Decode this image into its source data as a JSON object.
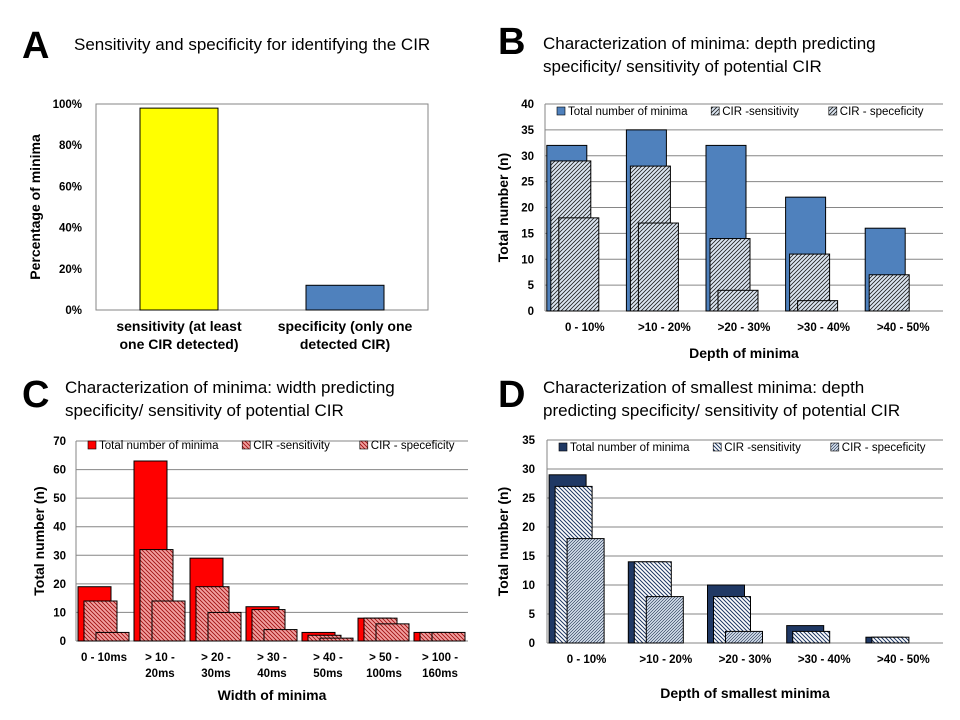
{
  "panels": {
    "A": {
      "letter": "A",
      "title": [
        "Sensitivity and specificity for identifying the CIR"
      ]
    },
    "B": {
      "letter": "B",
      "title": [
        "Characterization of minima: depth predicting",
        "specificity/ sensitivity of potential CIR"
      ]
    },
    "C": {
      "letter": "C",
      "title": [
        "Characterization of minima: width predicting",
        "specificity/ sensitivity of potential CIR"
      ]
    },
    "D": {
      "letter": "D",
      "title": [
        "Characterization of smallest minima: depth",
        "predicting specificity/ sensitivity of potential CIR"
      ]
    }
  },
  "colors": {
    "yellow": "#ffff00",
    "blue": "#4f81bd",
    "lightblue": "#dce6f2",
    "red": "#ff0000",
    "pinkred": "#f2a0a0",
    "navy": "#1f3864",
    "grid": "#868686"
  },
  "chart_data": [
    {
      "id": "A",
      "type": "bar",
      "categories": [
        [
          "sensitivity (at least",
          "one CIR detected)"
        ],
        [
          "specificity (only one",
          "detected CIR)"
        ]
      ],
      "values": [
        98,
        12
      ],
      "bar_colors": [
        "yellow",
        "blue"
      ],
      "ylabel": "Percentage of minima",
      "xlabel": "",
      "ylim": [
        0,
        100
      ],
      "yticks": [
        "0%",
        "20%",
        "40%",
        "60%",
        "80%",
        "100%"
      ],
      "grid": false,
      "legend": null
    },
    {
      "id": "B",
      "type": "bar",
      "categories": [
        "0 - 10%",
        ">10 - 20%",
        ">20 - 30%",
        ">30 - 40%",
        ">40 - 50%"
      ],
      "series": [
        {
          "name": "Total number of minima",
          "values": [
            32,
            35,
            32,
            22,
            16
          ]
        },
        {
          "name": "CIR -sensitivity",
          "values": [
            29,
            28,
            14,
            11,
            7
          ]
        },
        {
          "name": "CIR - speceficity",
          "values": [
            18,
            17,
            4,
            2,
            0
          ]
        }
      ],
      "xlabel": "Depth of minima",
      "ylabel": "Total number (n)",
      "ylim": [
        0,
        40
      ],
      "yticks": [
        "0",
        "5",
        "10",
        "15",
        "20",
        "25",
        "30",
        "35",
        "40"
      ],
      "grid": true,
      "legend": "top"
    },
    {
      "id": "C",
      "type": "bar",
      "categories": [
        [
          "0 - 10ms"
        ],
        [
          "> 10 -",
          "20ms"
        ],
        [
          "> 20 -",
          "30ms"
        ],
        [
          "> 30 -",
          "40ms"
        ],
        [
          "> 40 -",
          "50ms"
        ],
        [
          "> 50 -",
          "100ms"
        ],
        [
          "> 100 -",
          "160ms"
        ]
      ],
      "series": [
        {
          "name": "Total number of minima",
          "values": [
            19,
            63,
            29,
            12,
            3,
            8,
            3
          ]
        },
        {
          "name": "CIR -sensitivity",
          "values": [
            14,
            32,
            19,
            11,
            2,
            8,
            3
          ]
        },
        {
          "name": "CIR - speceficity",
          "values": [
            3,
            14,
            10,
            4,
            1,
            6,
            3
          ]
        }
      ],
      "xlabel": "Width of minima",
      "ylabel": "Total number (n)",
      "ylim": [
        0,
        70
      ],
      "yticks": [
        "0",
        "10",
        "20",
        "30",
        "40",
        "50",
        "60",
        "70"
      ],
      "grid": true,
      "legend": "top"
    },
    {
      "id": "D",
      "type": "bar",
      "categories": [
        "0 - 10%",
        ">10 - 20%",
        ">20 - 30%",
        ">30 - 40%",
        ">40 - 50%"
      ],
      "series": [
        {
          "name": "Total number of minima",
          "values": [
            29,
            14,
            10,
            3,
            1
          ]
        },
        {
          "name": "CIR -sensitivity",
          "values": [
            27,
            14,
            8,
            2,
            1
          ]
        },
        {
          "name": "CIR - speceficity",
          "values": [
            18,
            8,
            2,
            0,
            0
          ]
        }
      ],
      "xlabel": "Depth of smallest minima",
      "ylabel": "Total number (n)",
      "ylim": [
        0,
        35
      ],
      "yticks": [
        "0",
        "5",
        "10",
        "15",
        "20",
        "25",
        "30",
        "35"
      ],
      "grid": true,
      "legend": "top"
    }
  ]
}
